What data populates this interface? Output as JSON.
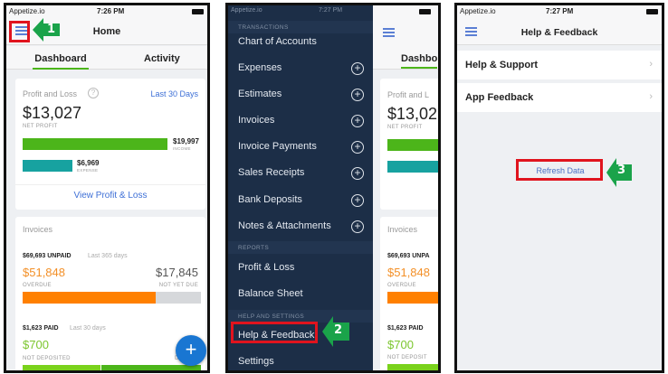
{
  "panel1": {
    "carrier": "Appetize.io",
    "time": "7:26 PM",
    "title": "Home",
    "tabs": [
      "Dashboard",
      "Activity"
    ],
    "pl": {
      "title": "Profit and Loss",
      "range": "Last 30 Days",
      "net": "$13,027",
      "net_label": "NET PROFIT",
      "income": "$19,997",
      "income_label": "INCOME",
      "expense": "$6,969",
      "expense_label": "EXPENSE",
      "link": "View Profit & Loss"
    },
    "invoices": {
      "title": "Invoices",
      "unpaid": "$69,693 UNPAID",
      "unpaid_period": "Last 365 days",
      "overdue": "$51,848",
      "overdue_label": "OVERDUE",
      "notdue": "$17,845",
      "notdue_label": "NOT YET DUE",
      "paid": "$1,623 PAID",
      "paid_period": "Last 30 days",
      "notdep": "$700",
      "notdep_label": "NOT DEPOSITED",
      "dep": "$",
      "dep_label": "DEP"
    },
    "fab": "+",
    "step": "1"
  },
  "panel2": {
    "carrier": "Appetize.io",
    "time": "7:27 PM",
    "sections": {
      "transactions": "TRANSACTIONS",
      "reports": "REPORTS",
      "help": "HELP AND SETTINGS"
    },
    "items": [
      "Chart of Accounts",
      "Expenses",
      "Estimates",
      "Invoices",
      "Invoice Payments",
      "Sales Receipts",
      "Bank Deposits",
      "Notes & Attachments",
      "Profit & Loss",
      "Balance Sheet",
      "Help & Feedback",
      "Settings"
    ],
    "bg": {
      "tab": "Dashbo",
      "pl": "Profit and L",
      "net": "$13,02",
      "net_label": "NET PROFIT",
      "inv": "Invoices",
      "unpaid": "$69,693 UNPA",
      "overdue": "$51,848",
      "overdue_label": "OVERDUE",
      "paid": "$1,623 PAID",
      "notdep": "$700",
      "notdep_label": "NOT DEPOSIT"
    },
    "step": "2"
  },
  "panel3": {
    "carrier": "Appetize.io",
    "time": "7:27 PM",
    "title": "Help & Feedback",
    "rows": [
      "Help & Support",
      "App Feedback"
    ],
    "refresh": "Refresh Data",
    "step": "3"
  },
  "colors": {
    "accent": "#3d6fd6",
    "income": "#4cb51a",
    "expense": "#17a2a0",
    "overdue": "#ff8000",
    "drawer": "#1c2e47",
    "highlight": "#e0141e",
    "step_arrow": "#1aa34a"
  }
}
